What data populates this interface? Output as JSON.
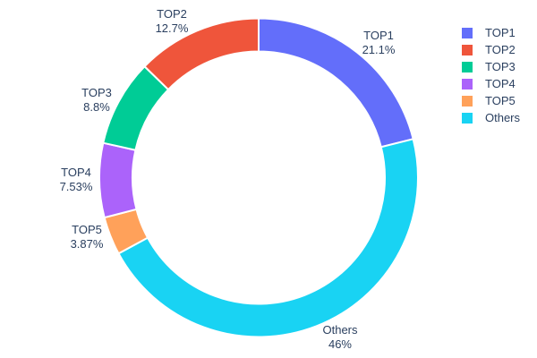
{
  "chart_data": {
    "type": "pie",
    "subtype": "donut",
    "title": "",
    "labels": [
      "TOP1",
      "TOP2",
      "TOP3",
      "TOP4",
      "TOP5",
      "Others"
    ],
    "values": [
      21.1,
      12.7,
      8.8,
      7.53,
      3.87,
      46
    ],
    "display_pcts": [
      "21.1%",
      "12.7%",
      "8.8%",
      "7.53%",
      "3.87%",
      "46%"
    ],
    "colors": [
      "#636EFA",
      "#EF553B",
      "#00CC96",
      "#AB63FA",
      "#FFA15A",
      "#19D3F3"
    ],
    "hole": 0.79,
    "direction": "clockwise",
    "order_clockwise_from_top": [
      "TOP1",
      "Others",
      "TOP5",
      "TOP4",
      "TOP3",
      "TOP2"
    ],
    "label_position": "outside",
    "legend_position": "top-right",
    "legend_items": [
      "TOP1",
      "TOP2",
      "TOP3",
      "TOP4",
      "TOP5",
      "Others"
    ],
    "text_color": "#2a3f5f",
    "background": "#ffffff"
  }
}
